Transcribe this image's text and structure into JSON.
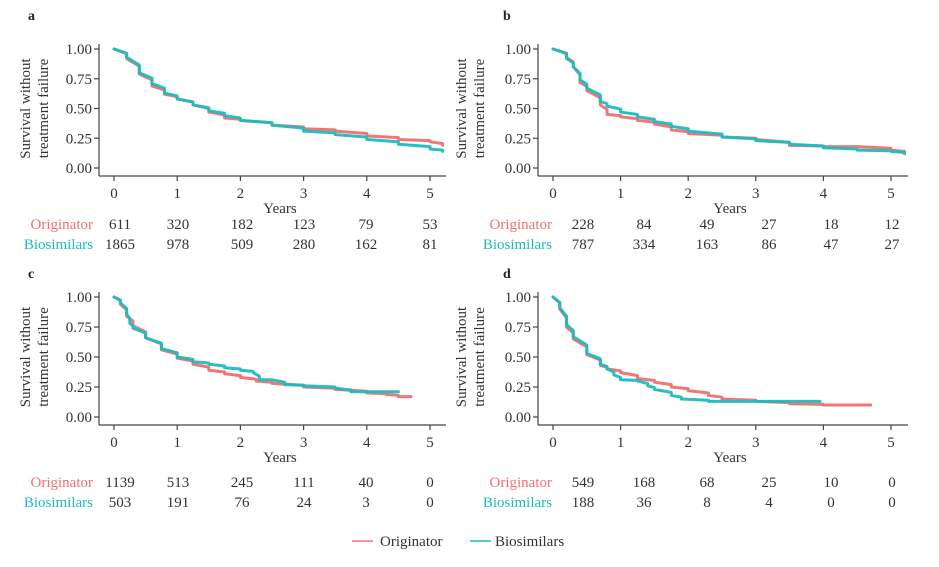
{
  "legend": {
    "items": [
      {
        "name": "Originator",
        "color": "#f07070"
      },
      {
        "name": "Biosimilars",
        "color": "#1cbcc0"
      }
    ]
  },
  "chart_data": [
    {
      "panel": "a",
      "type": "line",
      "title": "a",
      "xlabel": "Years",
      "ylabel": "Survival without treatment failure",
      "xlim": [
        0,
        5.2
      ],
      "ylim": [
        0,
        1
      ],
      "xticks": [
        0,
        1,
        2,
        3,
        4,
        5
      ],
      "yticks": [
        "0.00",
        "0.25",
        "0.50",
        "0.75",
        "1.00"
      ],
      "series": [
        {
          "name": "Originator",
          "x": [
            0,
            0.2,
            0.4,
            0.6,
            0.8,
            1.0,
            1.25,
            1.5,
            1.75,
            2.0,
            2.5,
            3.0,
            3.5,
            4.0,
            4.5,
            5.0,
            5.2
          ],
          "y": [
            1.0,
            0.92,
            0.79,
            0.69,
            0.62,
            0.58,
            0.53,
            0.47,
            0.42,
            0.4,
            0.36,
            0.33,
            0.31,
            0.27,
            0.24,
            0.22,
            0.19
          ]
        },
        {
          "name": "Biosimilars",
          "x": [
            0,
            0.2,
            0.4,
            0.6,
            0.8,
            1.0,
            1.25,
            1.5,
            1.75,
            2.0,
            2.5,
            3.0,
            3.5,
            4.0,
            4.5,
            5.0,
            5.2
          ],
          "y": [
            1.0,
            0.93,
            0.8,
            0.71,
            0.63,
            0.58,
            0.53,
            0.48,
            0.44,
            0.4,
            0.36,
            0.31,
            0.28,
            0.24,
            0.2,
            0.16,
            0.14
          ]
        }
      ],
      "risk_table": {
        "times": [
          0,
          1,
          2,
          3,
          4,
          5
        ],
        "rows": [
          {
            "label": "Originator",
            "values": [
              "611",
              "320",
              "182",
              "123",
              "79",
              "53"
            ]
          },
          {
            "label": "Biosimilars",
            "values": [
              "1865",
              "978",
              "509",
              "280",
              "162",
              "81"
            ]
          }
        ]
      }
    },
    {
      "panel": "b",
      "type": "line",
      "title": "b",
      "xlabel": "Years",
      "ylabel": "Survival without treatment failure",
      "xlim": [
        0,
        5.2
      ],
      "ylim": [
        0,
        1
      ],
      "xticks": [
        0,
        1,
        2,
        3,
        4,
        5
      ],
      "yticks": [
        "0.00",
        "0.25",
        "0.50",
        "0.75",
        "1.00"
      ],
      "series": [
        {
          "name": "Originator",
          "x": [
            0,
            0.2,
            0.3,
            0.4,
            0.5,
            0.7,
            0.8,
            1.0,
            1.25,
            1.5,
            1.75,
            2.0,
            2.5,
            3.0,
            3.5,
            4.0,
            4.5,
            5.0,
            5.2
          ],
          "y": [
            1.0,
            0.93,
            0.85,
            0.72,
            0.65,
            0.53,
            0.45,
            0.43,
            0.4,
            0.37,
            0.32,
            0.29,
            0.26,
            0.24,
            0.19,
            0.18,
            0.18,
            0.15,
            0.13
          ]
        },
        {
          "name": "Biosimilars",
          "x": [
            0,
            0.2,
            0.3,
            0.4,
            0.5,
            0.7,
            0.8,
            1.0,
            1.25,
            1.5,
            1.75,
            2.0,
            2.5,
            3.0,
            3.5,
            4.0,
            4.5,
            5.0,
            5.2
          ],
          "y": [
            1.0,
            0.92,
            0.85,
            0.74,
            0.67,
            0.56,
            0.52,
            0.47,
            0.43,
            0.39,
            0.35,
            0.31,
            0.26,
            0.23,
            0.2,
            0.17,
            0.15,
            0.14,
            0.12
          ]
        }
      ],
      "risk_table": {
        "times": [
          0,
          1,
          2,
          3,
          4,
          5
        ],
        "rows": [
          {
            "label": "Originator",
            "values": [
              "228",
              "84",
              "49",
              "27",
              "18",
              "12"
            ]
          },
          {
            "label": "Biosimilars",
            "values": [
              "787",
              "334",
              "163",
              "86",
              "47",
              "27"
            ]
          }
        ]
      }
    },
    {
      "panel": "c",
      "type": "line",
      "title": "c",
      "xlabel": "Years",
      "ylabel": "Survival without treatment failure",
      "xlim": [
        0,
        5.2
      ],
      "ylim": [
        0,
        1
      ],
      "xticks": [
        0,
        1,
        2,
        3,
        4,
        5
      ],
      "yticks": [
        "0.00",
        "0.25",
        "0.50",
        "0.75",
        "1.00"
      ],
      "series": [
        {
          "name": "Originator",
          "x": [
            0,
            0.1,
            0.2,
            0.3,
            0.5,
            0.75,
            1.0,
            1.25,
            1.5,
            1.75,
            2.0,
            2.25,
            2.5,
            3.0,
            3.5,
            4.0,
            4.3,
            4.5,
            4.7
          ],
          "y": [
            1.0,
            0.94,
            0.84,
            0.76,
            0.66,
            0.56,
            0.49,
            0.44,
            0.39,
            0.36,
            0.33,
            0.3,
            0.28,
            0.25,
            0.23,
            0.2,
            0.19,
            0.17,
            0.17
          ]
        },
        {
          "name": "Biosimilars",
          "x": [
            0,
            0.1,
            0.2,
            0.25,
            0.3,
            0.5,
            0.75,
            1.0,
            1.25,
            1.5,
            1.75,
            2.0,
            2.2,
            2.3,
            2.5,
            2.7,
            3.0,
            3.5,
            3.75,
            4.0,
            4.5
          ],
          "y": [
            1.0,
            0.95,
            0.86,
            0.78,
            0.74,
            0.66,
            0.57,
            0.5,
            0.46,
            0.44,
            0.41,
            0.39,
            0.37,
            0.31,
            0.31,
            0.27,
            0.26,
            0.24,
            0.21,
            0.21,
            0.21
          ]
        }
      ],
      "risk_table": {
        "times": [
          0,
          1,
          2,
          3,
          4,
          5
        ],
        "rows": [
          {
            "label": "Originator",
            "values": [
              "1139",
              "513",
              "245",
              "111",
              "40",
              "0"
            ]
          },
          {
            "label": "Biosimilars",
            "values": [
              "503",
              "191",
              "76",
              "24",
              "3",
              "0"
            ]
          }
        ]
      }
    },
    {
      "panel": "d",
      "type": "line",
      "title": "d",
      "xlabel": "Years",
      "ylabel": "Survival without treatment failure",
      "xlim": [
        0,
        5.2
      ],
      "ylim": [
        0,
        1
      ],
      "xticks": [
        0,
        1,
        2,
        3,
        4,
        5
      ],
      "yticks": [
        "0.00",
        "0.25",
        "0.50",
        "0.75",
        "1.00"
      ],
      "series": [
        {
          "name": "Originator",
          "x": [
            0,
            0.1,
            0.2,
            0.3,
            0.5,
            0.7,
            0.8,
            1.0,
            1.25,
            1.5,
            1.75,
            2.0,
            2.3,
            2.5,
            3.0,
            3.5,
            4.0,
            4.7
          ],
          "y": [
            1.0,
            0.9,
            0.75,
            0.65,
            0.52,
            0.43,
            0.4,
            0.37,
            0.32,
            0.29,
            0.25,
            0.22,
            0.18,
            0.15,
            0.13,
            0.11,
            0.1,
            0.1
          ]
        },
        {
          "name": "Biosimilars",
          "x": [
            0,
            0.1,
            0.2,
            0.3,
            0.5,
            0.7,
            0.8,
            0.9,
            1.0,
            1.25,
            1.4,
            1.5,
            1.75,
            1.9,
            2.3,
            2.5,
            3.0,
            3.5,
            3.95
          ],
          "y": [
            1.0,
            0.91,
            0.77,
            0.67,
            0.53,
            0.44,
            0.4,
            0.35,
            0.31,
            0.3,
            0.26,
            0.23,
            0.18,
            0.15,
            0.13,
            0.13,
            0.13,
            0.13,
            0.13
          ]
        }
      ],
      "risk_table": {
        "times": [
          0,
          1,
          2,
          3,
          4,
          5
        ],
        "rows": [
          {
            "label": "Originator",
            "values": [
              "549",
              "168",
              "68",
              "25",
              "10",
              "0"
            ]
          },
          {
            "label": "Biosimilars",
            "values": [
              "188",
              "36",
              "8",
              "4",
              "0",
              "0"
            ]
          }
        ]
      }
    }
  ]
}
